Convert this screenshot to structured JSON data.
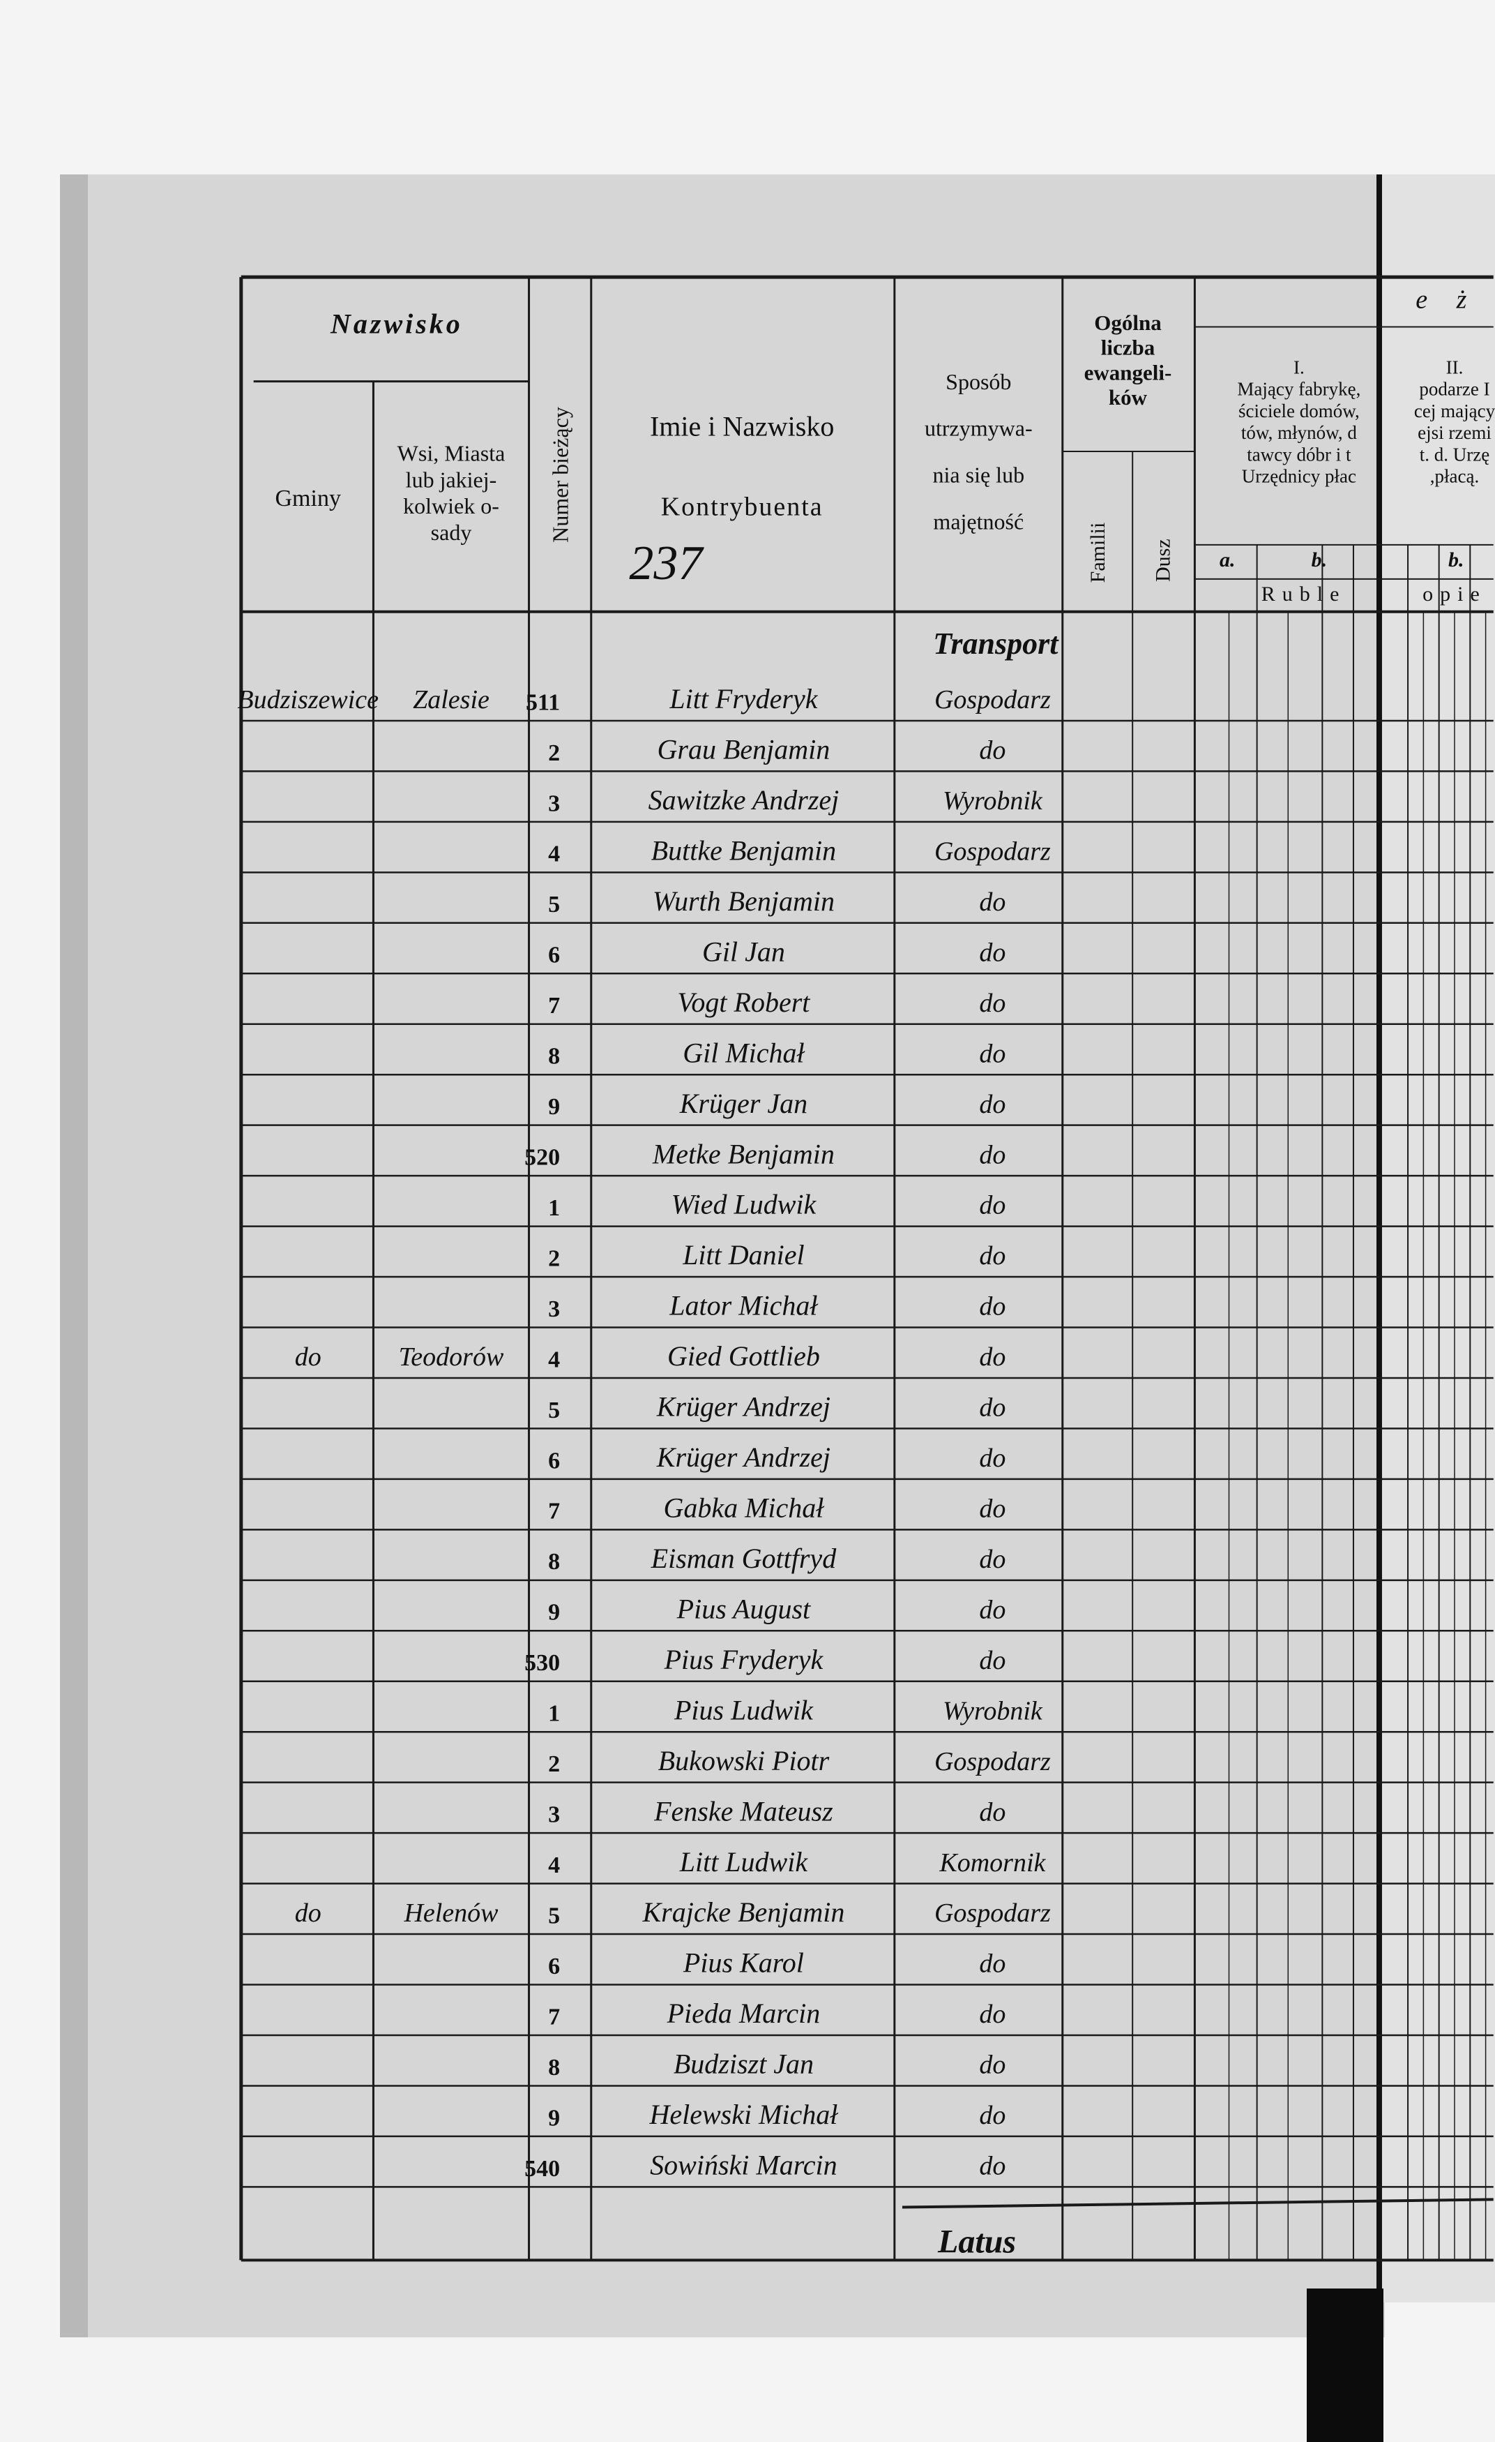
{
  "header": {
    "nazwisko": "Nazwisko",
    "gminy": "Gminy",
    "wsi": [
      "Wsi, Miasta",
      "lub jakiej-",
      "kolwiek o-",
      "sady"
    ],
    "numer": "Numer bieżący",
    "imie": "Imie i Nazwisko",
    "kontrybuenta": "Kontrybuenta",
    "sposob": [
      "Sposób",
      "utrzymywa-",
      "nia się lub",
      "majętność"
    ],
    "ogolna": [
      "Ogólna",
      "liczba",
      "ewangeli-",
      "ków"
    ],
    "familii": "Familii",
    "dusz": "Dusz",
    "section_top": "e ż",
    "col1": [
      "I.",
      "Mający fabrykę,",
      "ściciele domów,",
      "tów, młynów, d",
      "tawcy dóbr i t",
      "Urzędnicy płac"
    ],
    "col2": [
      "II.",
      "podarze I",
      "cej mający",
      "ejsi rzemi",
      "t. d. Urzę",
      ",płacą."
    ],
    "sub_a": "a.",
    "sub_b1": "b.",
    "sub_b2": "b.",
    "ruble": "Ruble",
    "kopie": "opie"
  },
  "annotations": {
    "page_number": "237",
    "transport": "Transport",
    "latus": "Latus"
  },
  "rows": [
    {
      "num": "511",
      "gmina": "Budziszewice",
      "village": "Zalesie",
      "name": "Litt Fryderyk",
      "occupation": "Gospodarz"
    },
    {
      "num": "2",
      "name": "Grau Benjamin",
      "occupation": "do"
    },
    {
      "num": "3",
      "name": "Sawitzke Andrzej",
      "occupation": "Wyrobnik"
    },
    {
      "num": "4",
      "name": "Buttke Benjamin",
      "occupation": "Gospodarz"
    },
    {
      "num": "5",
      "name": "Wurth Benjamin",
      "occupation": "do"
    },
    {
      "num": "6",
      "name": "Gil Jan",
      "occupation": "do"
    },
    {
      "num": "7",
      "name": "Vogt Robert",
      "occupation": "do"
    },
    {
      "num": "8",
      "name": "Gil Michał",
      "occupation": "do"
    },
    {
      "num": "9",
      "name": "Krüger Jan",
      "occupation": "do"
    },
    {
      "num": "520",
      "name": "Metke Benjamin",
      "occupation": "do"
    },
    {
      "num": "1",
      "name": "Wied Ludwik",
      "occupation": "do"
    },
    {
      "num": "2",
      "name": "Litt Daniel",
      "occupation": "do"
    },
    {
      "num": "3",
      "name": "Lator Michał",
      "occupation": "do"
    },
    {
      "num": "4",
      "gmina": "do",
      "village": "Teodorów",
      "name": "Gied Gottlieb",
      "occupation": "do"
    },
    {
      "num": "5",
      "name": "Krüger Andrzej",
      "occupation": "do"
    },
    {
      "num": "6",
      "name": "Krüger Andrzej",
      "occupation": "do"
    },
    {
      "num": "7",
      "name": "Gabka Michał",
      "occupation": "do"
    },
    {
      "num": "8",
      "name": "Eisman Gottfryd",
      "occupation": "do"
    },
    {
      "num": "9",
      "name": "Pius August",
      "occupation": "do"
    },
    {
      "num": "530",
      "name": "Pius Fryderyk",
      "occupation": "do"
    },
    {
      "num": "1",
      "name": "Pius Ludwik",
      "occupation": "Wyrobnik"
    },
    {
      "num": "2",
      "name": "Bukowski Piotr",
      "occupation": "Gospodarz"
    },
    {
      "num": "3",
      "name": "Fenske Mateusz",
      "occupation": "do"
    },
    {
      "num": "4",
      "name": "Litt Ludwik",
      "occupation": "Komornik"
    },
    {
      "num": "5",
      "gmina": "do",
      "village": "Helenów",
      "name": "Krajcke Benjamin",
      "occupation": "Gospodarz"
    },
    {
      "num": "6",
      "name": "Pius Karol",
      "occupation": "do"
    },
    {
      "num": "7",
      "name": "Pieda Marcin",
      "occupation": "do"
    },
    {
      "num": "8",
      "name": "Budziszt Jan",
      "occupation": "do"
    },
    {
      "num": "9",
      "name": "Helewski Michał",
      "occupation": "do"
    },
    {
      "num": "540",
      "name": "Sowiński Marcin",
      "occupation": "do"
    }
  ]
}
